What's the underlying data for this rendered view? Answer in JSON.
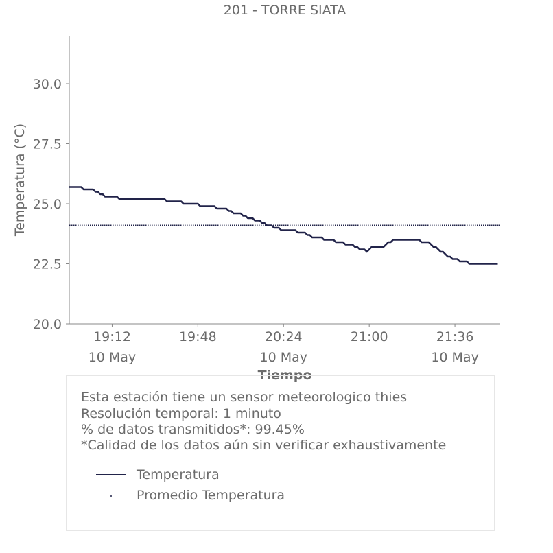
{
  "chart_data": {
    "type": "line",
    "title": "201 - TORRE SIATA",
    "xlabel": "Tiempo",
    "ylabel": "Temperatura (°C)",
    "ylim": [
      20.0,
      32.0
    ],
    "xlim": [
      "18:54",
      "21:55"
    ],
    "yticks": [
      {
        "value": 20.0,
        "label": "20.0"
      },
      {
        "value": 22.5,
        "label": "22.5"
      },
      {
        "value": 25.0,
        "label": "25.0"
      },
      {
        "value": 27.5,
        "label": "27.5"
      },
      {
        "value": 30.0,
        "label": "30.0"
      }
    ],
    "xticks": [
      {
        "value": "19:12",
        "label": "19:12",
        "date": "10 May"
      },
      {
        "value": "19:48",
        "label": "19:48",
        "date": ""
      },
      {
        "value": "20:24",
        "label": "20:24",
        "date": "10 May"
      },
      {
        "value": "21:00",
        "label": "21:00",
        "date": ""
      },
      {
        "value": "21:36",
        "label": "21:36",
        "date": "10 May"
      }
    ],
    "series": [
      {
        "name": "Temperatura",
        "color": "#22244a",
        "style": "solid",
        "points": [
          [
            "18:54",
            25.7
          ],
          [
            "18:59",
            25.7
          ],
          [
            "19:00",
            25.6
          ],
          [
            "19:04",
            25.6
          ],
          [
            "19:05",
            25.5
          ],
          [
            "19:06",
            25.5
          ],
          [
            "19:07",
            25.4
          ],
          [
            "19:08",
            25.4
          ],
          [
            "19:09",
            25.3
          ],
          [
            "19:14",
            25.3
          ],
          [
            "19:15",
            25.2
          ],
          [
            "19:34",
            25.2
          ],
          [
            "19:35",
            25.1
          ],
          [
            "19:41",
            25.1
          ],
          [
            "19:42",
            25.0
          ],
          [
            "19:48",
            25.0
          ],
          [
            "19:49",
            24.9
          ],
          [
            "19:55",
            24.9
          ],
          [
            "19:56",
            24.8
          ],
          [
            "20:00",
            24.8
          ],
          [
            "20:01",
            24.7
          ],
          [
            "20:02",
            24.7
          ],
          [
            "20:03",
            24.6
          ],
          [
            "20:06",
            24.6
          ],
          [
            "20:07",
            24.5
          ],
          [
            "20:08",
            24.5
          ],
          [
            "20:09",
            24.4
          ],
          [
            "20:11",
            24.4
          ],
          [
            "20:12",
            24.3
          ],
          [
            "20:14",
            24.3
          ],
          [
            "20:15",
            24.2
          ],
          [
            "20:16",
            24.2
          ],
          [
            "20:17",
            24.1
          ],
          [
            "20:19",
            24.1
          ],
          [
            "20:20",
            24.0
          ],
          [
            "20:22",
            24.0
          ],
          [
            "20:23",
            23.9
          ],
          [
            "20:29",
            23.9
          ],
          [
            "20:30",
            23.8
          ],
          [
            "20:33",
            23.8
          ],
          [
            "20:34",
            23.7
          ],
          [
            "20:35",
            23.7
          ],
          [
            "20:36",
            23.6
          ],
          [
            "20:40",
            23.6
          ],
          [
            "20:41",
            23.5
          ],
          [
            "20:45",
            23.5
          ],
          [
            "20:46",
            23.4
          ],
          [
            "20:49",
            23.4
          ],
          [
            "20:50",
            23.3
          ],
          [
            "20:53",
            23.3
          ],
          [
            "20:54",
            23.2
          ],
          [
            "20:55",
            23.2
          ],
          [
            "20:56",
            23.1
          ],
          [
            "20:58",
            23.1
          ],
          [
            "20:59",
            23.0
          ],
          [
            "21:00",
            23.1
          ],
          [
            "21:01",
            23.2
          ],
          [
            "21:06",
            23.2
          ],
          [
            "21:07",
            23.3
          ],
          [
            "21:08",
            23.4
          ],
          [
            "21:09",
            23.4
          ],
          [
            "21:10",
            23.5
          ],
          [
            "21:21",
            23.5
          ],
          [
            "21:22",
            23.4
          ],
          [
            "21:25",
            23.4
          ],
          [
            "21:26",
            23.3
          ],
          [
            "21:27",
            23.2
          ],
          [
            "21:28",
            23.2
          ],
          [
            "21:29",
            23.1
          ],
          [
            "21:30",
            23.0
          ],
          [
            "21:31",
            23.0
          ],
          [
            "21:32",
            22.9
          ],
          [
            "21:33",
            22.8
          ],
          [
            "21:34",
            22.8
          ],
          [
            "21:35",
            22.7
          ],
          [
            "21:37",
            22.7
          ],
          [
            "21:38",
            22.6
          ],
          [
            "21:41",
            22.6
          ],
          [
            "21:42",
            22.5
          ],
          [
            "21:54",
            22.5
          ]
        ]
      },
      {
        "name": "Promedio Temperatura",
        "color": "#22244a",
        "style": "dotted",
        "points": [
          [
            "18:54",
            24.1
          ],
          [
            "21:55",
            24.1
          ]
        ]
      }
    ],
    "legend_position": "inside-info-box",
    "grid": false
  },
  "info_box": {
    "lines": [
      "Esta estación tiene un sensor meteorologico thies",
      "Resolución temporal: 1 minuto",
      "% de datos transmitidos*: 99.45%",
      "*Calidad de los datos aún sin verificar exhaustivamente"
    ],
    "legend": [
      "Temperatura",
      "Promedio Temperatura"
    ]
  },
  "colors": {
    "line": "#22244a",
    "text": "#6b6b6b",
    "axis": "#888888",
    "box_border": "#e6e6e6"
  }
}
